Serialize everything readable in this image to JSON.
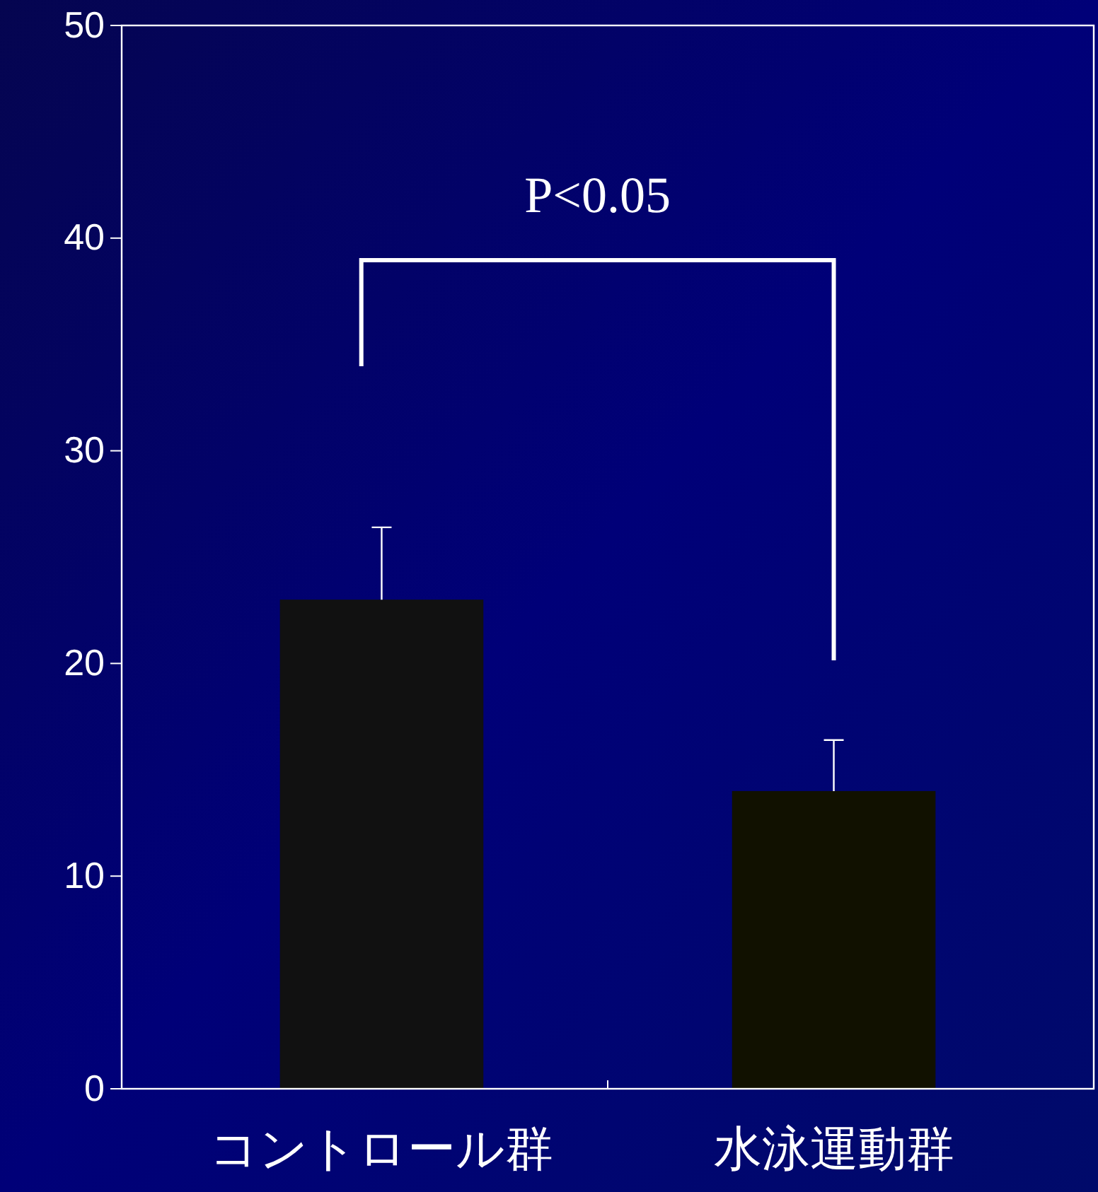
{
  "chart_data": {
    "type": "bar",
    "categories": [
      "コントロール群",
      "水泳運動群"
    ],
    "values": [
      23.0,
      14.0
    ],
    "colors": [
      "#111111",
      "#111100"
    ],
    "errors": [
      [
        23.0,
        26.4
      ],
      [
        14.0,
        16.4
      ]
    ],
    "ylim": [
      0,
      50
    ],
    "yticks": [
      0,
      10,
      20,
      30,
      40,
      50
    ],
    "annotations": [
      "P<0.05"
    ]
  }
}
